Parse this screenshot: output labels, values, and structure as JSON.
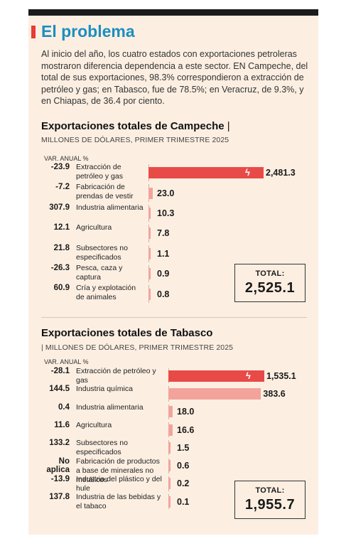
{
  "header": {
    "title": "El problema",
    "intro": "Al inicio del año, los cuatro estados con exportaciones petroleras mostraron diferencia dependencia a este sector. EN Campeche, del total de sus exportaciones, 98.3% correspondieron a extracción de petróleo y gas; en Tabasco, fue de 78.5%; en Veracruz, de 9.3%, y en Chiapas, de 36.4 por ciento."
  },
  "colors": {
    "accent_red": "#e63b37",
    "bar_red": "#e84a48",
    "bar_pink": "#f2a39b",
    "title_blue": "#1d8ec0",
    "panel_bg": "#fcefe2"
  },
  "chart_data": [
    {
      "type": "bar",
      "orientation": "horizontal",
      "title": "Exportaciones totales de Campeche",
      "subtitle": "MILLONES DE DÓLARES, PRIMER TRIMESTRE 2025",
      "var_label": "VAR. ANUAL %",
      "categories": [
        "Extracción de petróleo y gas",
        "Fabricación de prendas de vestir",
        "Industria alimentaria",
        "Agricultura",
        "Subsectores no especificados",
        "Pesca, caza y captura",
        "Cría y explotación de animales"
      ],
      "values": [
        2481.3,
        23.0,
        10.3,
        7.8,
        1.1,
        0.9,
        0.8
      ],
      "value_labels": [
        "2,481.3",
        "23.0",
        "10.3",
        "7.8",
        "1.1",
        "0.9",
        "0.8"
      ],
      "var_anual": [
        "-23.9",
        "-7.2",
        "307.9",
        "12.1",
        "21.8",
        "-26.3",
        "60.9"
      ],
      "broken_axis_first_bar": true,
      "total_label": "TOTAL:",
      "total_value": "2,525.1"
    },
    {
      "type": "bar",
      "orientation": "horizontal",
      "title": "Exportaciones totales de Tabasco",
      "subtitle": "MILLONES DE DÓLARES, PRIMER TRIMESTRE 2025",
      "var_label": "VAR. ANUAL %",
      "categories": [
        "Extracción de petróleo y gas",
        "Industria química",
        "Industria alimentaria",
        "Agricultura",
        "Subsectores no especificados",
        "Fabricación de productos a base de minerales no metálicos",
        "Industria del plástico y del hule",
        "Industria de las bebidas y el tabaco"
      ],
      "values": [
        1535.1,
        383.6,
        18.0,
        16.6,
        1.5,
        0.6,
        0.2,
        0.1
      ],
      "value_labels": [
        "1,535.1",
        "383.6",
        "18.0",
        "16.6",
        "1.5",
        "0.6",
        "0.2",
        "0.1"
      ],
      "var_anual": [
        "-28.1",
        "144.5",
        "0.4",
        "11.6",
        "133.2",
        "No aplica",
        "-13.9",
        "137.8"
      ],
      "broken_axis_first_bar": true,
      "total_label": "TOTAL:",
      "total_value": "1,955.7"
    }
  ]
}
